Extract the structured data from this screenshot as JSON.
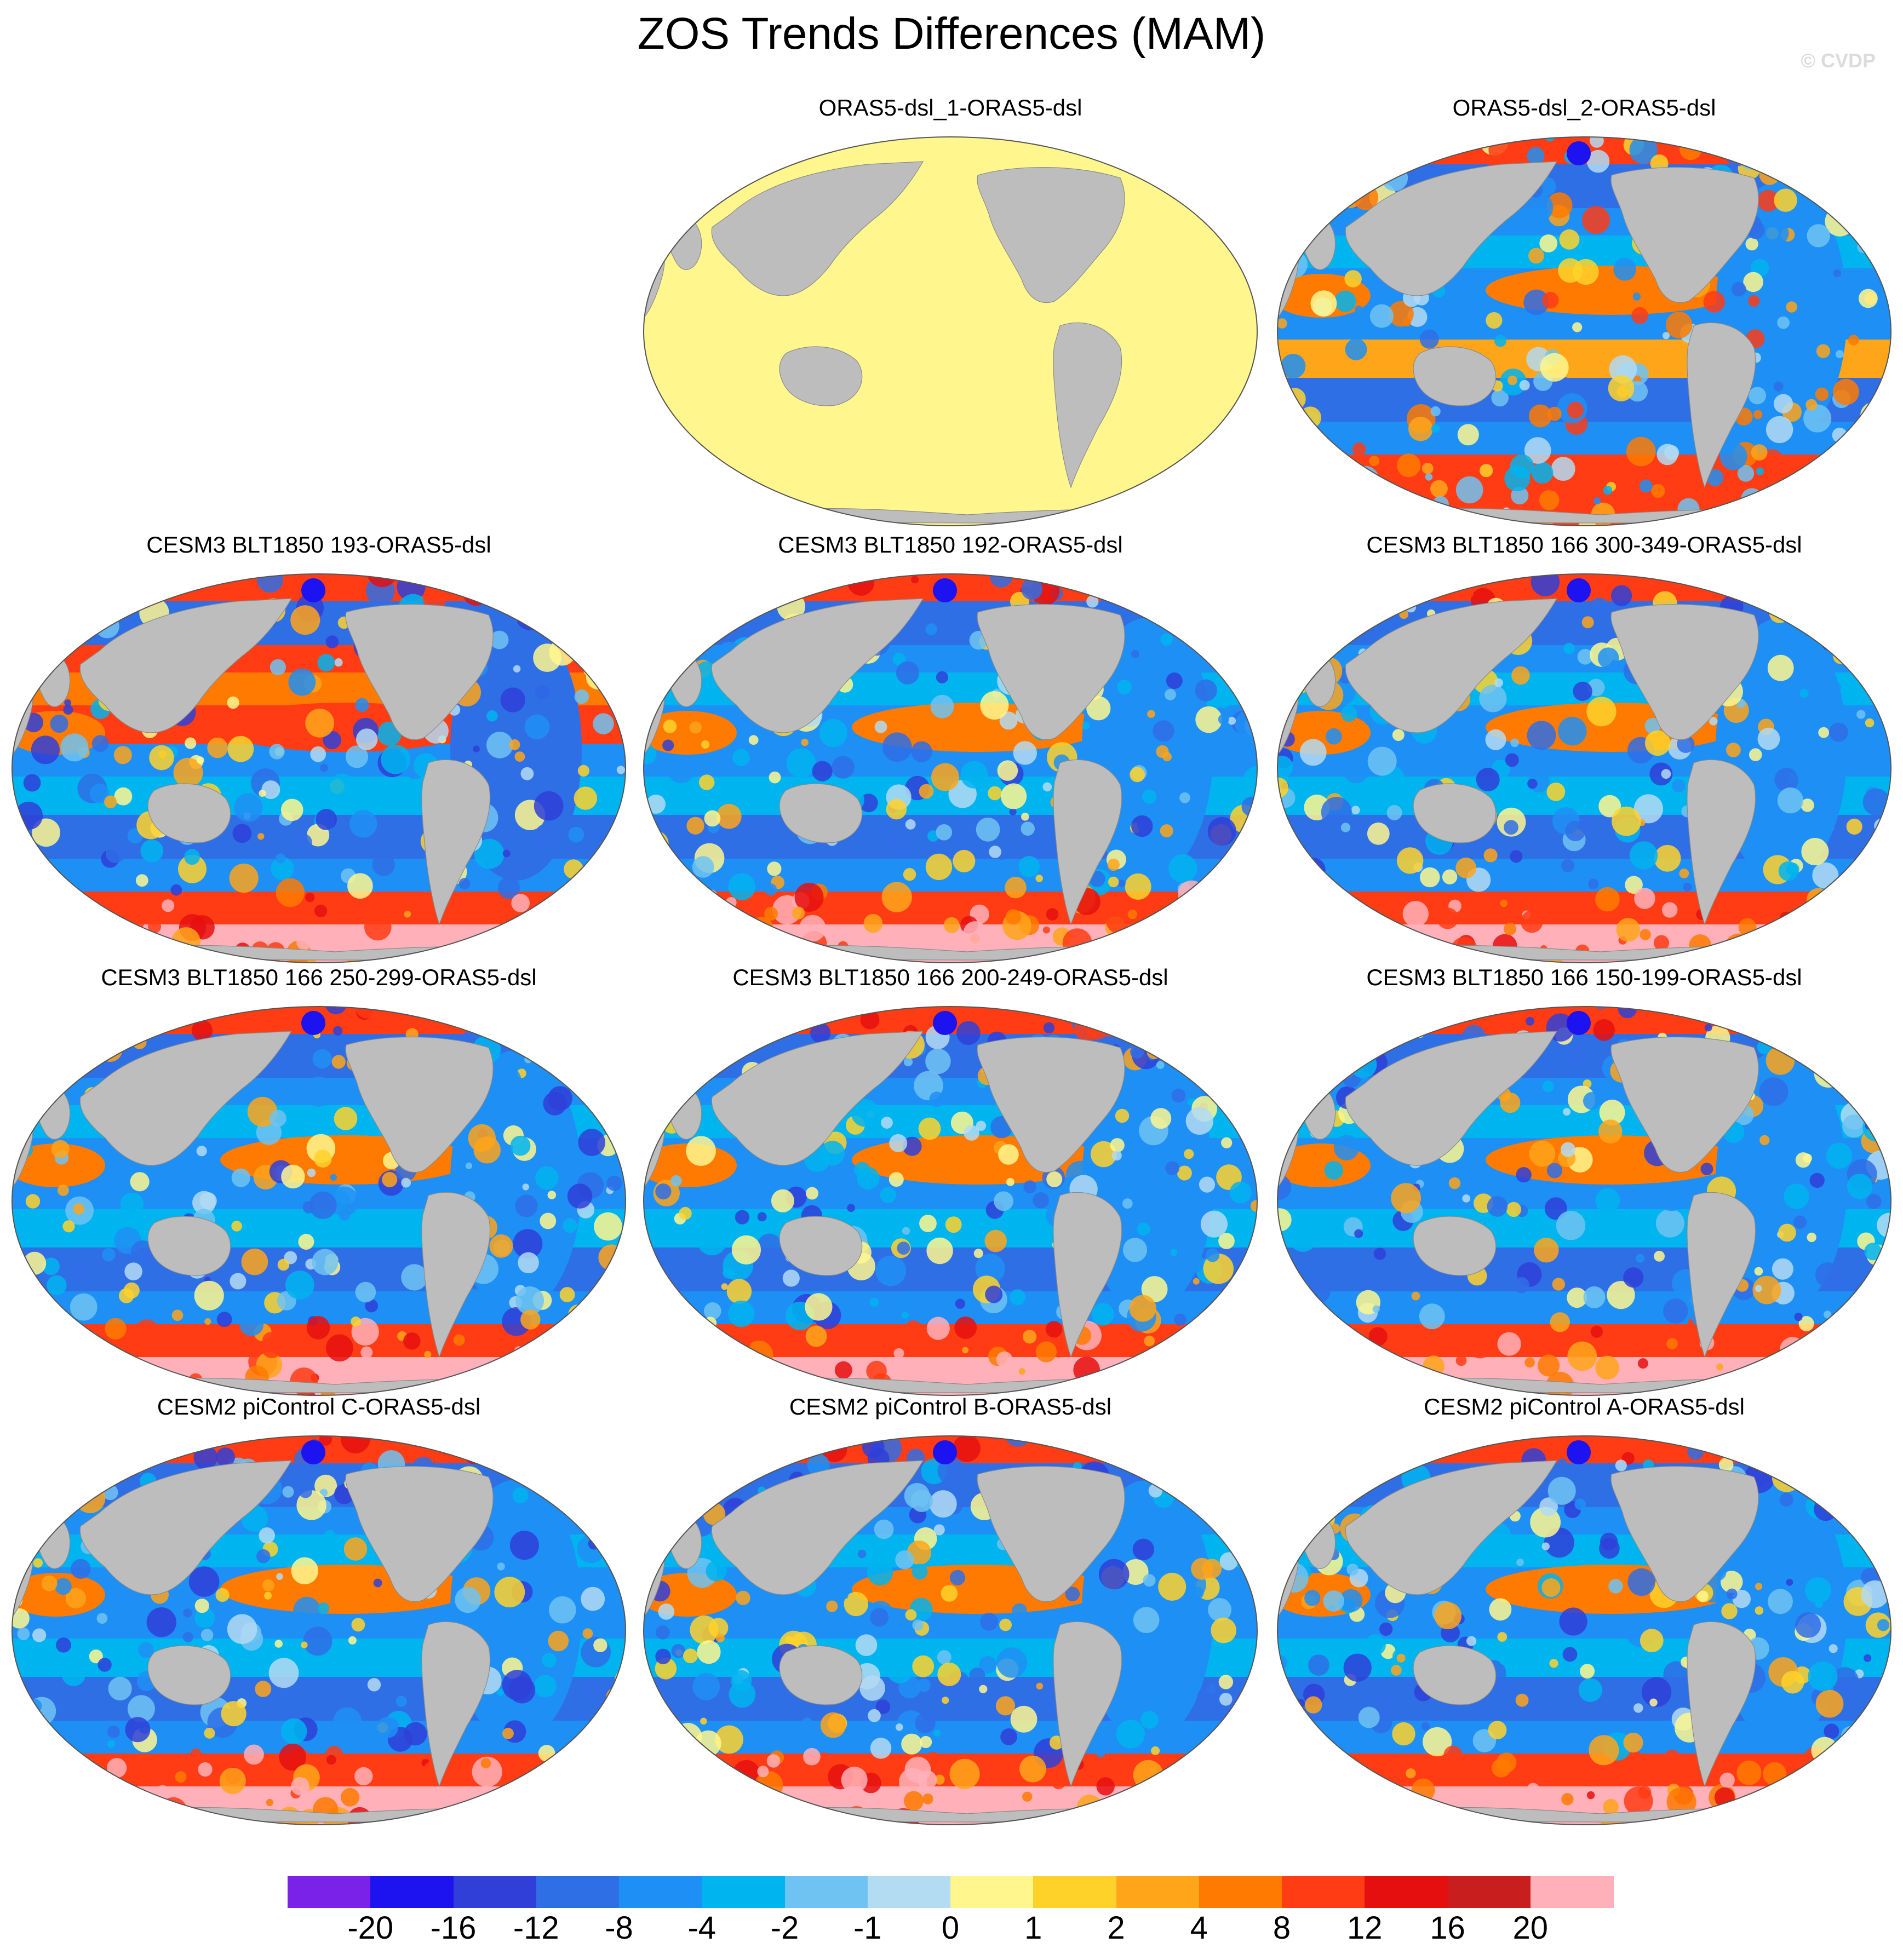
{
  "title": "ZOS Trends Differences (MAM)",
  "watermark": "© CVDP",
  "colors": {
    "land": "#bdbdbd",
    "ocean_outline": "#555555",
    "palette": [
      "#7a22e8",
      "#1d12f0",
      "#2f3fd8",
      "#2f6fe6",
      "#1e8ff4",
      "#00b4f0",
      "#6ec3f2",
      "#b3dbf2",
      "#fff78e",
      "#ffd22a",
      "#ffa51a",
      "#ff7a00",
      "#ff3c14",
      "#e60f0f",
      "#c81e1e",
      "#ffb0b8"
    ]
  },
  "colorbar": {
    "labels": [
      "-20",
      "-16",
      "-12",
      "-8",
      "-4",
      "-2",
      "-1",
      "0",
      "1",
      "2",
      "4",
      "8",
      "12",
      "16",
      "20"
    ]
  },
  "panels": [
    {
      "title": "ORAS5-dsl_1-ORAS5-dsl",
      "pattern": "uniform"
    },
    {
      "title": "ORAS5-dsl_2-ORAS5-dsl",
      "pattern": "mixed"
    },
    {
      "title": "CESM3 BLT1850 193-ORAS5-dsl",
      "pattern": "pacific-warm"
    },
    {
      "title": "CESM3 BLT1850 192-ORAS5-dsl",
      "pattern": "model"
    },
    {
      "title": "CESM3 BLT1850 166 300-349-ORAS5-dsl",
      "pattern": "model"
    },
    {
      "title": "CESM3 BLT1850 166 250-299-ORAS5-dsl",
      "pattern": "model"
    },
    {
      "title": "CESM3 BLT1850 166 200-249-ORAS5-dsl",
      "pattern": "model"
    },
    {
      "title": "CESM3 BLT1850 166 150-199-ORAS5-dsl",
      "pattern": "model"
    },
    {
      "title": "CESM2 piControl C-ORAS5-dsl",
      "pattern": "model"
    },
    {
      "title": "CESM2 piControl B-ORAS5-dsl",
      "pattern": "model"
    },
    {
      "title": "CESM2 piControl A-ORAS5-dsl",
      "pattern": "model"
    }
  ]
}
